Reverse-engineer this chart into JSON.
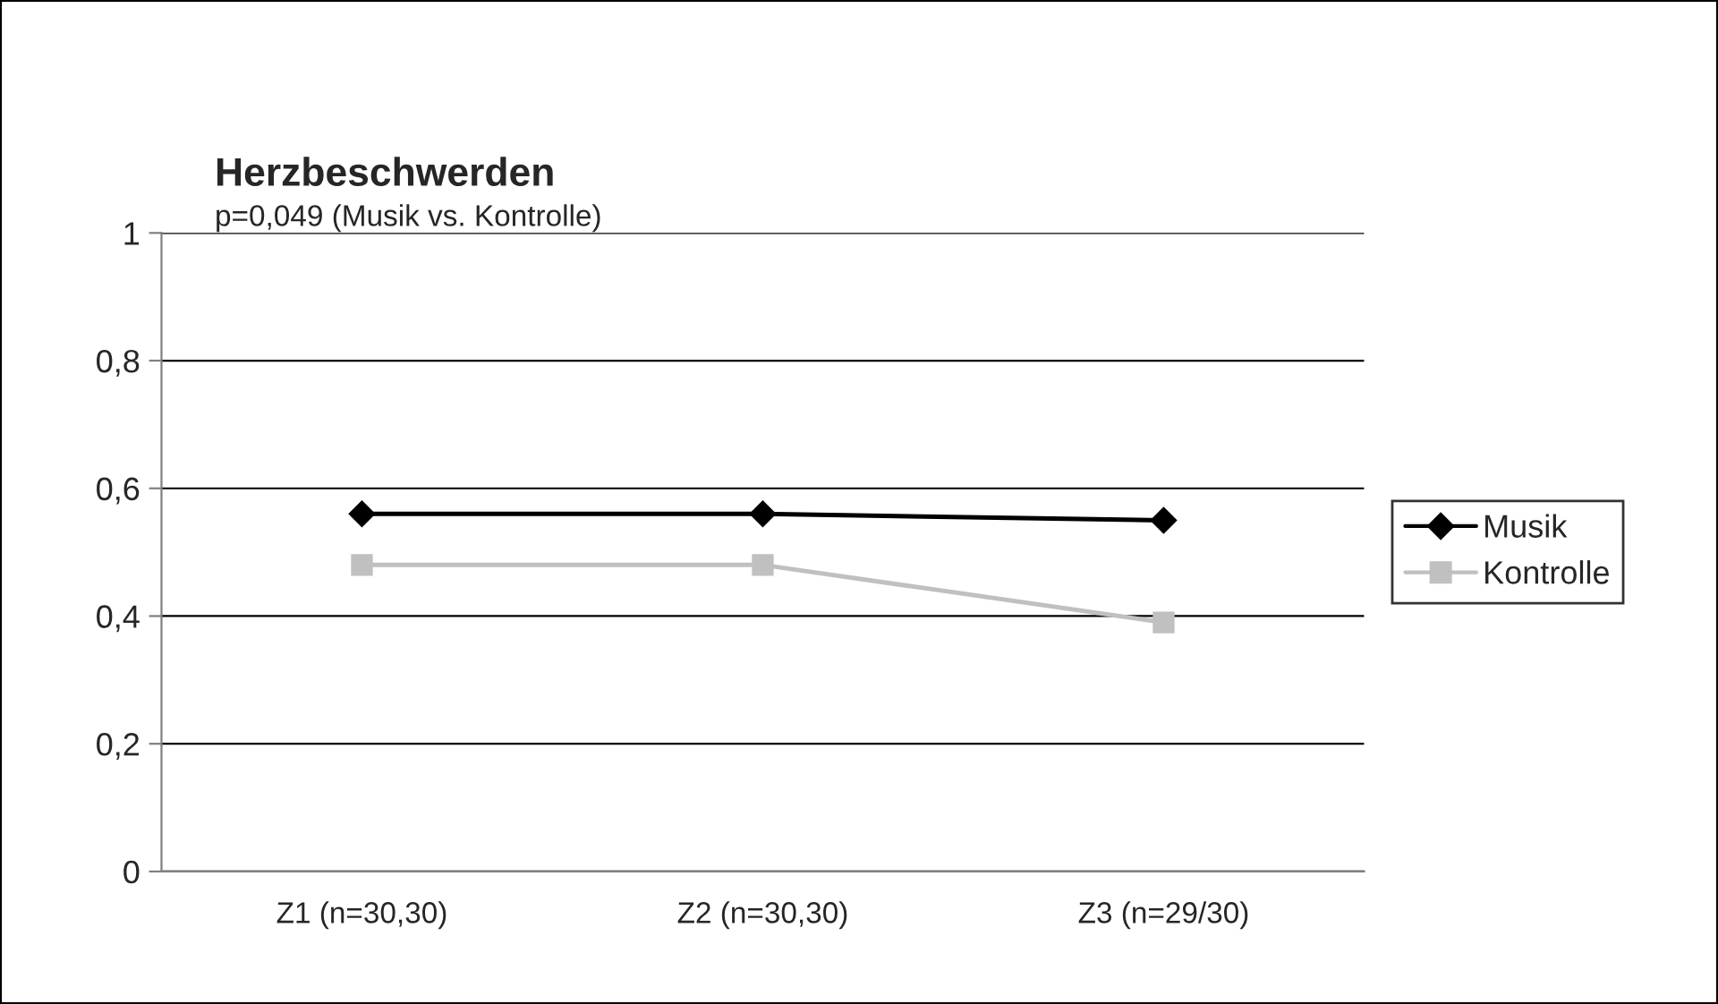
{
  "chart_data": {
    "type": "line",
    "title": "Herzbeschwerden",
    "subtitle": "p=0,049 (Musik vs. Kontrolle)",
    "categories": [
      "Z1 (n=30,30)",
      "Z2 (n=30,30)",
      "Z3 (n=29/30)"
    ],
    "series": [
      {
        "name": "Musik",
        "color": "#000000",
        "marker": "diamond",
        "values": [
          0.56,
          0.56,
          0.55
        ]
      },
      {
        "name": "Kontrolle",
        "color": "#c0c0c0",
        "marker": "square",
        "values": [
          0.48,
          0.48,
          0.39
        ]
      }
    ],
    "ylim": [
      0,
      1
    ],
    "yticks": [
      {
        "value": 0,
        "label": "0"
      },
      {
        "value": 0.2,
        "label": "0,2"
      },
      {
        "value": 0.4,
        "label": "0,4"
      },
      {
        "value": 0.6,
        "label": "0,6"
      },
      {
        "value": 0.8,
        "label": "0,8"
      },
      {
        "value": 1,
        "label": "1"
      }
    ],
    "grid": "y",
    "legend": "right",
    "line_style": "solid"
  }
}
